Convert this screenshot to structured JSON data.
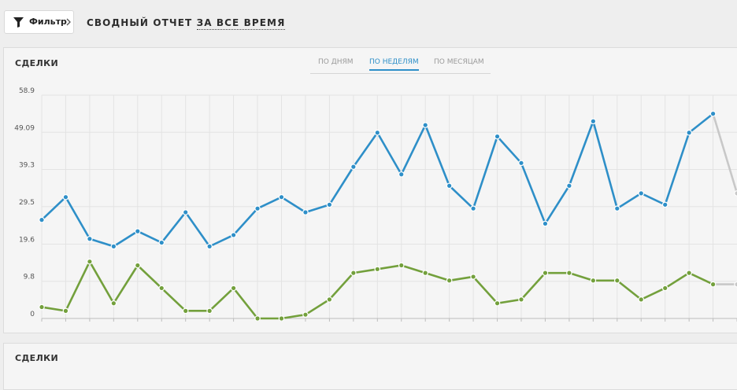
{
  "toolbar": {
    "filter_label": "Фильтр",
    "filter_icon": "funnel-icon",
    "filter_chevron_icon": "chevron-right-icon"
  },
  "report": {
    "title_prefix": "Сводный отчет",
    "period": "за все время"
  },
  "card1": {
    "title": "СДЕЛКИ",
    "tabs": [
      {
        "label": "ПО ДНЯМ",
        "active": false
      },
      {
        "label": "ПО НЕДЕЛЯМ",
        "active": true
      },
      {
        "label": "ПО МЕСЯЦАМ",
        "active": false
      }
    ]
  },
  "card2": {
    "title": "СДЕЛКИ"
  },
  "chart_data": {
    "type": "line",
    "title": "",
    "xlabel": "",
    "ylabel": "",
    "ylim": [
      0,
      58.9
    ],
    "y_ticks": [
      "0",
      "9.8",
      "19.6",
      "29.5",
      "39.3",
      "49.09",
      "58.9"
    ],
    "grid": true,
    "x_count": 30,
    "partial_from_index": 28,
    "partial_color": "#c8c8c8",
    "series": [
      {
        "color": "#2e8fc8",
        "values": [
          26,
          32,
          21,
          19,
          23,
          20,
          28,
          19,
          22,
          29,
          32,
          28,
          30,
          40,
          49,
          38,
          51,
          35,
          29,
          48,
          41,
          25,
          35,
          52,
          29,
          33,
          30,
          49,
          54,
          33
        ]
      },
      {
        "color": "#73a03c",
        "values": [
          3,
          2,
          15,
          4,
          14,
          8,
          2,
          2,
          8,
          0,
          0,
          1,
          5,
          12,
          13,
          14,
          12,
          10,
          11,
          4,
          5,
          12,
          12,
          10,
          10,
          5,
          8,
          12,
          9,
          9
        ]
      }
    ]
  }
}
